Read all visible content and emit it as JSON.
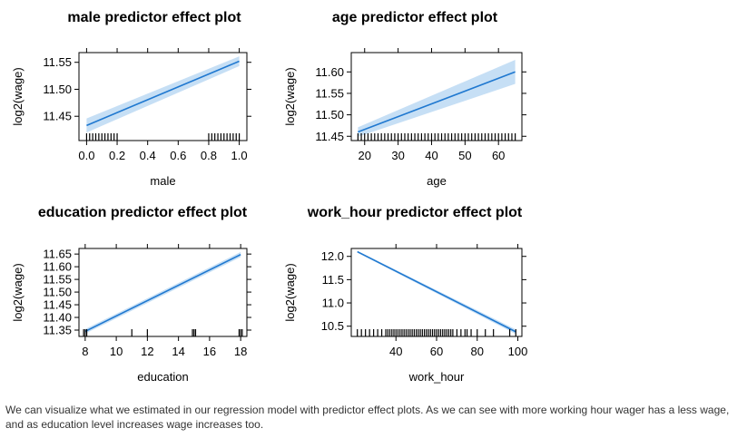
{
  "chart_data": [
    {
      "type": "line",
      "title": "male predictor effect plot",
      "xlabel": "male",
      "ylabel": "log2(wage)",
      "xlim": [
        -0.05,
        1.05
      ],
      "ylim": [
        11.405,
        11.568
      ],
      "x_ticks": [
        0.0,
        0.2,
        0.4,
        0.6,
        0.8,
        1.0
      ],
      "x_tick_labels": [
        "0.0",
        "0.2",
        "0.4",
        "0.6",
        "0.8",
        "1.0"
      ],
      "y_ticks": [
        11.45,
        11.5,
        11.55
      ],
      "y_tick_labels": [
        "11.45",
        "11.50",
        "11.55"
      ],
      "series": [
        {
          "x": [
            0.0,
            1.0
          ],
          "y": [
            11.433,
            11.552
          ],
          "lower": [
            11.42,
            11.543
          ],
          "upper": [
            11.446,
            11.561
          ]
        }
      ],
      "rug": [
        0.0,
        0.02,
        0.04,
        0.06,
        0.08,
        0.1,
        0.12,
        0.14,
        0.16,
        0.18,
        0.2,
        0.8,
        0.82,
        0.84,
        0.86,
        0.88,
        0.9,
        0.92,
        0.94,
        0.96,
        0.98,
        1.0
      ],
      "line_color": "#1f78d0",
      "band_color": "#c6dff5"
    },
    {
      "type": "line",
      "title": "age predictor effect plot",
      "xlabel": "age",
      "ylabel": "log2(wage)",
      "xlim": [
        16,
        67
      ],
      "ylim": [
        11.44,
        11.645
      ],
      "x_ticks": [
        20,
        30,
        40,
        50,
        60
      ],
      "x_tick_labels": [
        "20",
        "30",
        "40",
        "50",
        "60"
      ],
      "y_ticks": [
        11.45,
        11.5,
        11.55,
        11.6
      ],
      "y_tick_labels": [
        "11.45",
        "11.50",
        "11.55",
        "11.60"
      ],
      "series": [
        {
          "x": [
            18,
            65
          ],
          "y": [
            11.46,
            11.6
          ],
          "lower": [
            11.449,
            11.572
          ],
          "upper": [
            11.471,
            11.628
          ]
        }
      ],
      "rug": [
        18,
        19,
        20,
        21,
        22,
        23,
        24,
        25,
        26,
        27,
        28,
        29,
        30,
        31,
        32,
        33,
        34,
        35,
        36,
        37,
        38,
        39,
        40,
        41,
        42,
        43,
        44,
        45,
        46,
        47,
        48,
        49,
        50,
        51,
        52,
        53,
        54,
        55,
        56,
        57,
        58,
        59,
        60,
        61,
        62,
        63,
        64,
        65
      ],
      "line_color": "#1f78d0",
      "band_color": "#c6dff5"
    },
    {
      "type": "line",
      "title": "education predictor effect plot",
      "xlabel": "education",
      "ylabel": "log2(wage)",
      "xlim": [
        7.6,
        18.4
      ],
      "ylim": [
        11.325,
        11.672
      ],
      "x_ticks": [
        8,
        10,
        12,
        14,
        16,
        18
      ],
      "x_tick_labels": [
        "8",
        "10",
        "12",
        "14",
        "16",
        "18"
      ],
      "y_ticks": [
        11.35,
        11.4,
        11.45,
        11.5,
        11.55,
        11.6,
        11.65
      ],
      "y_tick_labels": [
        "11.35",
        "11.40",
        "11.45",
        "11.50",
        "11.55",
        "11.60",
        "11.65"
      ],
      "series": [
        {
          "x": [
            8,
            18
          ],
          "y": [
            11.345,
            11.648
          ],
          "lower": [
            11.336,
            11.638
          ],
          "upper": [
            11.354,
            11.658
          ]
        }
      ],
      "rug": [
        7.9,
        8.0,
        8.1,
        11.0,
        12.0,
        14.9,
        15.0,
        15.1,
        17.9,
        18.0,
        18.1
      ],
      "line_color": "#1f78d0",
      "band_color": "#c6dff5"
    },
    {
      "type": "line",
      "title": "work_hour predictor effect plot",
      "xlabel": "work_hour",
      "ylabel": "log2(wage)",
      "xlim": [
        18,
        102
      ],
      "ylim": [
        10.28,
        12.17
      ],
      "x_ticks": [
        40,
        60,
        80,
        100
      ],
      "x_tick_labels": [
        "40",
        "60",
        "80",
        "100"
      ],
      "y_ticks": [
        10.5,
        11.0,
        11.5,
        12.0
      ],
      "y_tick_labels": [
        "10.5",
        "11.0",
        "11.5",
        "12.0"
      ],
      "series": [
        {
          "x": [
            21,
            99
          ],
          "y": [
            12.1,
            10.38
          ],
          "lower": [
            12.08,
            10.33
          ],
          "upper": [
            12.12,
            10.43
          ]
        }
      ],
      "rug": [
        21,
        23,
        25,
        27,
        29,
        31,
        33,
        35,
        36,
        37,
        38,
        39,
        40,
        41,
        42,
        43,
        44,
        45,
        46,
        47,
        48,
        49,
        50,
        51,
        52,
        53,
        54,
        55,
        56,
        57,
        58,
        59,
        60,
        61,
        62,
        63,
        64,
        65,
        66,
        67,
        68,
        70,
        72,
        74,
        75,
        77,
        80,
        84,
        88,
        96,
        99
      ],
      "line_color": "#1f78d0",
      "band_color": "#c6dff5"
    }
  ],
  "caption": "We can visualize what we estimated in our regression model with predictor effect plots. As we can see with more working hour wager has a less wage, and as education level increases wage increases too."
}
